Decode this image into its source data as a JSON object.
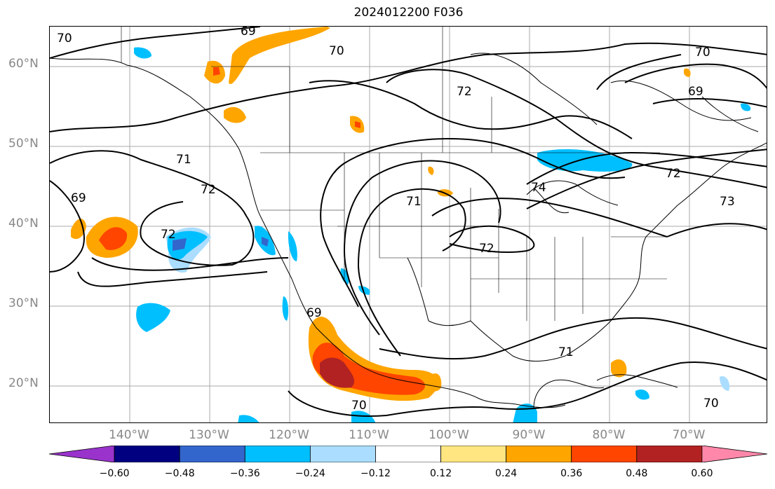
{
  "title": "2024012200 F036",
  "lat_labels": [
    "60°N",
    "50°N",
    "40°N",
    "30°N",
    "20°N"
  ],
  "lon_labels": [
    "140°W",
    "130°W",
    "120°W",
    "110°W",
    "100°W",
    "90°W",
    "80°W",
    "70°W"
  ],
  "colorbar": {
    "ticks": [
      "−0.60",
      "−0.48",
      "−0.36",
      "−0.24",
      "−0.12",
      "0.12",
      "0.24",
      "0.36",
      "0.48",
      "0.60"
    ],
    "colors": [
      "#9933cc",
      "#000080",
      "#3366cc",
      "#00bfff",
      "#aaddff",
      "#ffffff",
      "#ffe680",
      "#ffa500",
      "#ff4500",
      "#b22222",
      "#ff88aa"
    ]
  },
  "contour_labels": [
    "70",
    "69",
    "70",
    "72",
    "70",
    "69",
    "71",
    "72",
    "69",
    "72",
    "71",
    "72",
    "74",
    "72",
    "73",
    "69",
    "71",
    "70",
    "70"
  ]
}
